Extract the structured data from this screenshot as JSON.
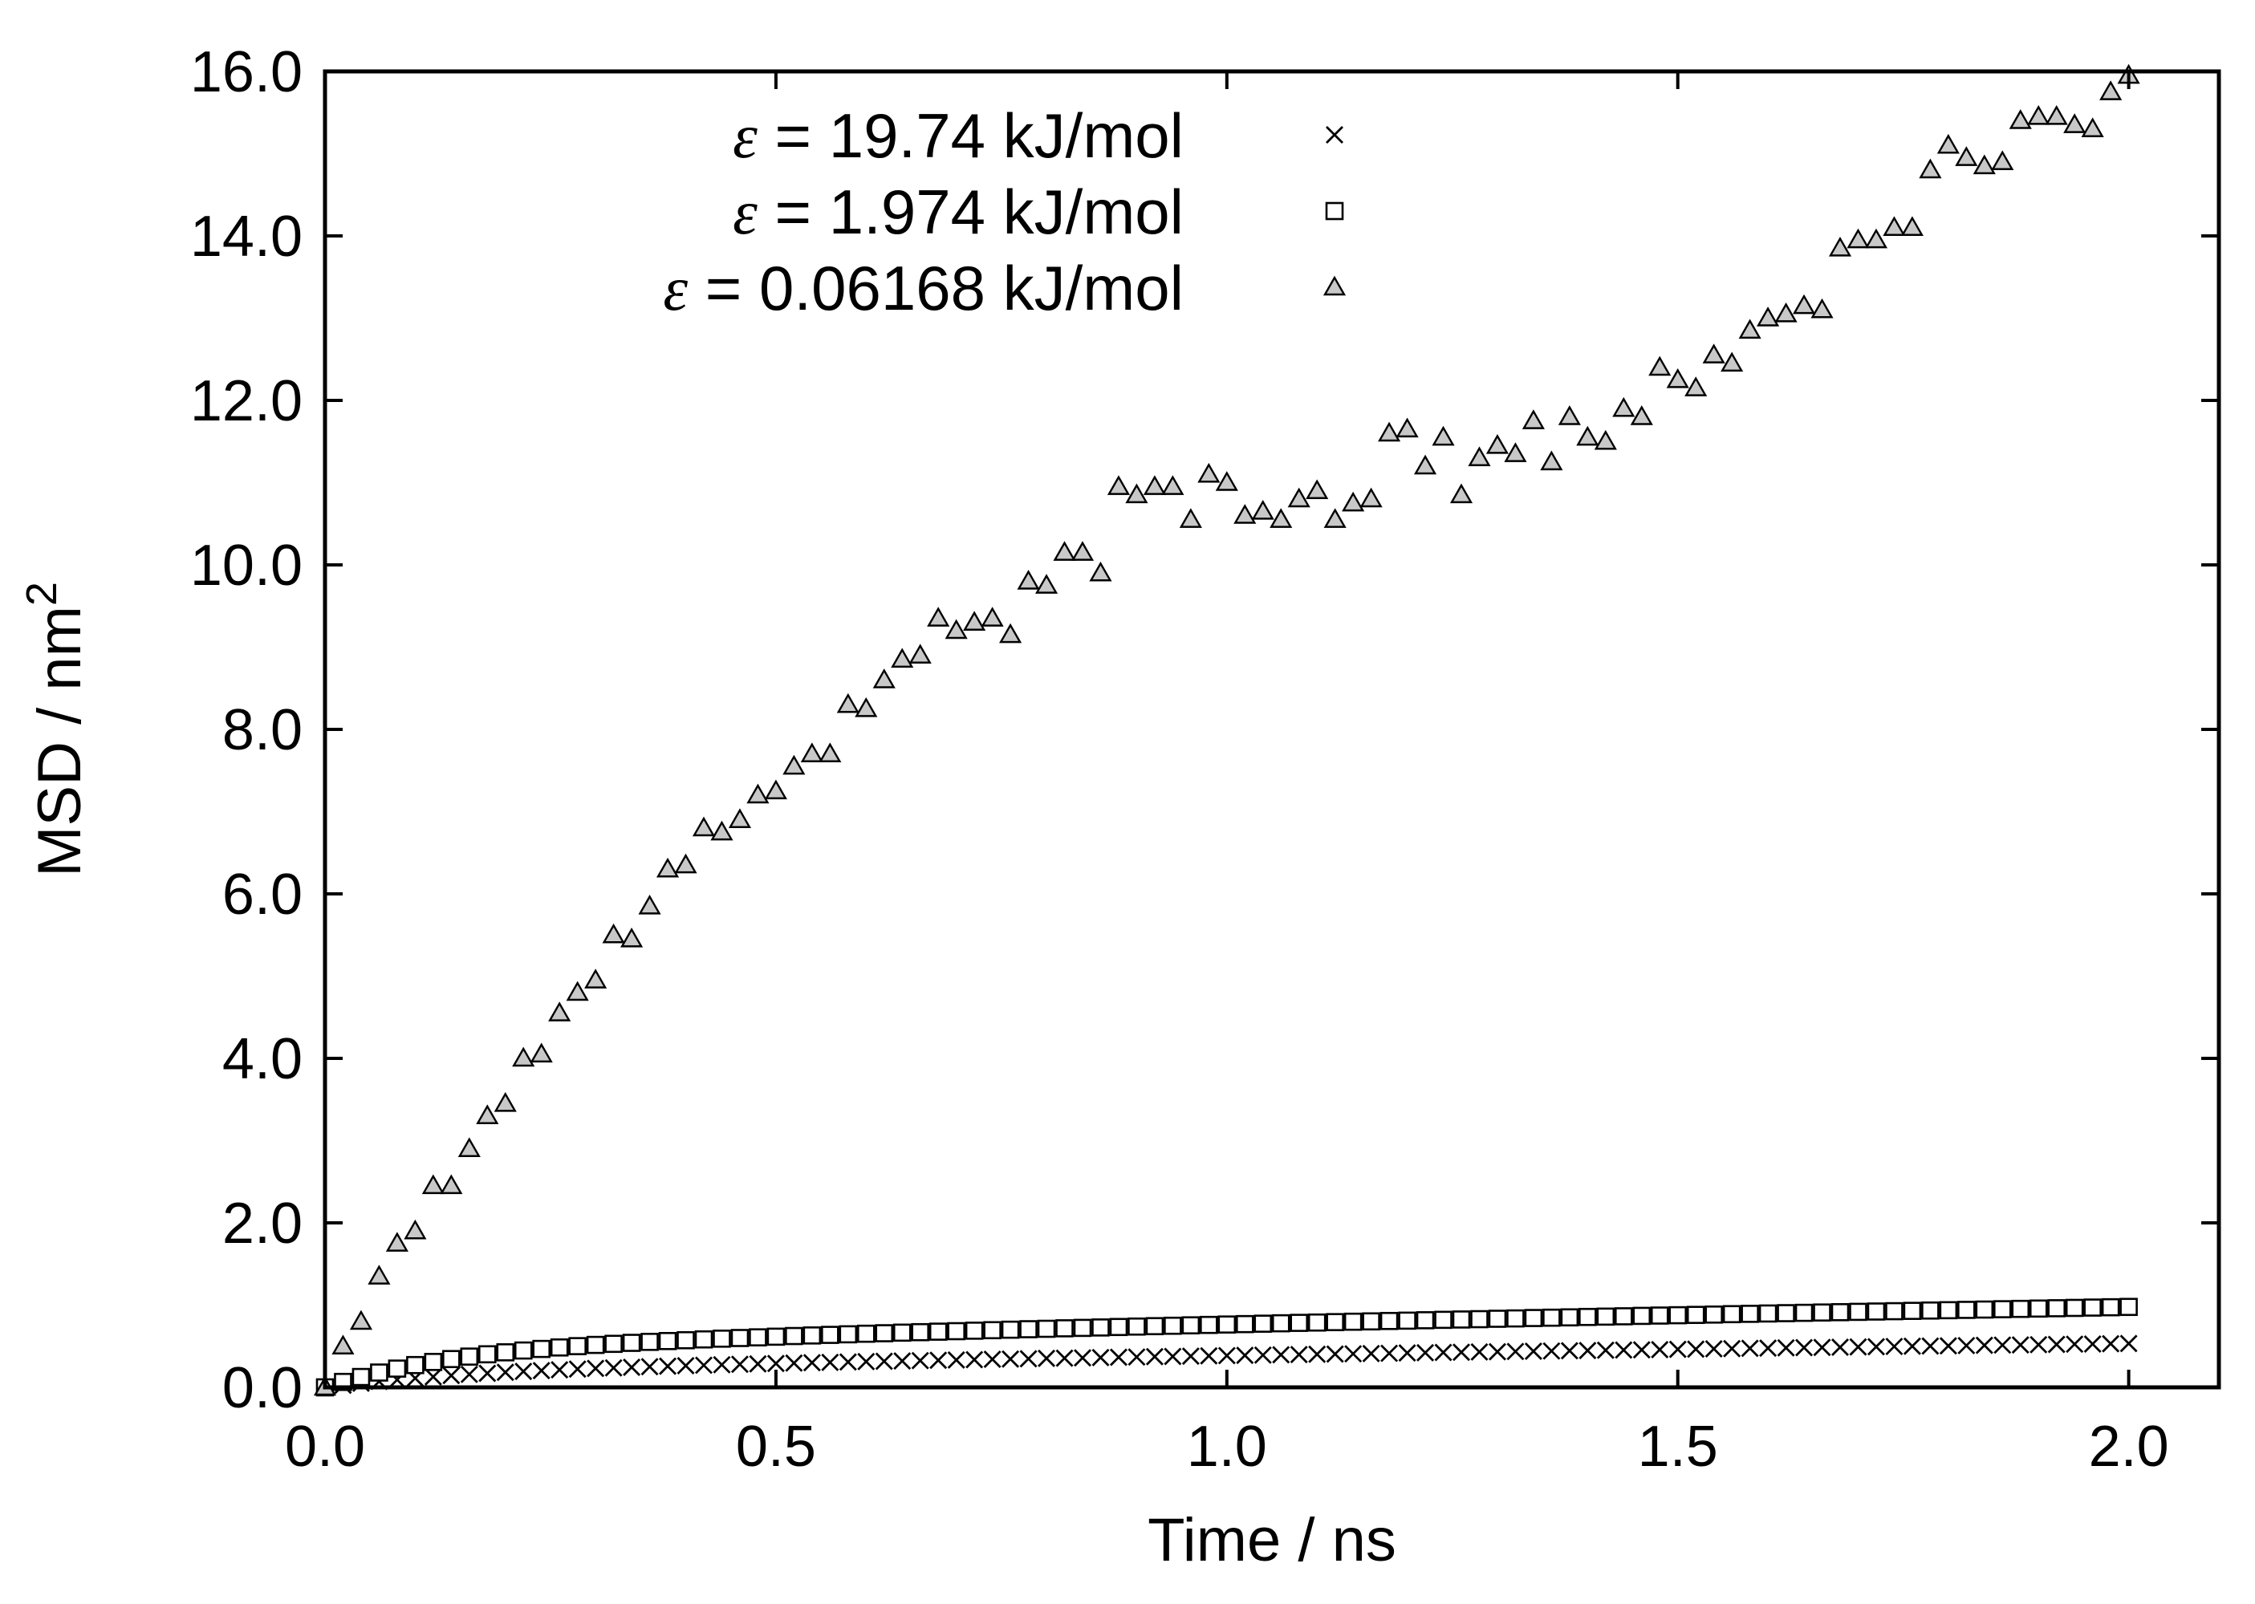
{
  "chart_data": {
    "type": "scatter",
    "title": "",
    "xlabel": "Time / ns",
    "ylabel_base": "MSD / nm",
    "ylabel_sup": "2",
    "xlim": [
      0.0,
      2.1
    ],
    "ylim": [
      0.0,
      16.0
    ],
    "x_ticks": [
      0.0,
      0.5,
      1.0,
      1.5,
      2.0
    ],
    "x_tick_labels": [
      "0.0",
      "0.5",
      "1.0",
      "1.5",
      "2.0"
    ],
    "y_ticks": [
      0,
      2,
      4,
      6,
      8,
      10,
      12,
      14,
      16
    ],
    "y_tick_labels": [
      "0.0",
      "2.0",
      "4.0",
      "6.0",
      "8.0",
      "10.0",
      "12.0",
      "14.0",
      "16.0"
    ],
    "grid": false,
    "legend_position": "top-left",
    "series": [
      {
        "name": "ε = 19.74 kJ/mol",
        "symbol": "ε",
        "label_rest": " = 19.74 kJ/mol",
        "marker": "cross",
        "x_start": 0.0,
        "x_step": 0.02,
        "values": [
          0.0,
          0.026,
          0.05,
          0.072,
          0.092,
          0.111,
          0.128,
          0.144,
          0.158,
          0.171,
          0.183,
          0.194,
          0.204,
          0.213,
          0.222,
          0.23,
          0.237,
          0.244,
          0.251,
          0.257,
          0.263,
          0.269,
          0.275,
          0.28,
          0.285,
          0.29,
          0.295,
          0.3,
          0.304,
          0.309,
          0.313,
          0.317,
          0.321,
          0.325,
          0.329,
          0.333,
          0.337,
          0.341,
          0.344,
          0.348,
          0.352,
          0.355,
          0.359,
          0.362,
          0.366,
          0.369,
          0.373,
          0.376,
          0.379,
          0.383,
          0.386,
          0.389,
          0.392,
          0.396,
          0.399,
          0.402,
          0.405,
          0.408,
          0.411,
          0.414,
          0.418,
          0.421,
          0.424,
          0.427,
          0.43,
          0.433,
          0.436,
          0.439,
          0.442,
          0.445,
          0.448,
          0.451,
          0.454,
          0.456,
          0.459,
          0.462,
          0.465,
          0.468,
          0.471,
          0.474,
          0.477,
          0.48,
          0.483,
          0.485,
          0.488,
          0.491,
          0.494,
          0.497,
          0.5,
          0.502,
          0.505,
          0.508,
          0.511,
          0.514,
          0.516,
          0.519,
          0.522,
          0.525,
          0.527,
          0.53,
          0.533
        ]
      },
      {
        "name": "ε = 1.974 kJ/mol",
        "symbol": "ε",
        "label_rest": " = 1.974 kJ/mol",
        "marker": "square",
        "x_start": 0.0,
        "x_step": 0.02,
        "values": [
          0.0,
          0.066,
          0.126,
          0.18,
          0.228,
          0.271,
          0.309,
          0.344,
          0.374,
          0.402,
          0.426,
          0.448,
          0.467,
          0.485,
          0.501,
          0.516,
          0.529,
          0.541,
          0.553,
          0.563,
          0.573,
          0.583,
          0.592,
          0.6,
          0.608,
          0.616,
          0.624,
          0.631,
          0.638,
          0.645,
          0.652,
          0.658,
          0.665,
          0.671,
          0.677,
          0.683,
          0.689,
          0.695,
          0.701,
          0.707,
          0.712,
          0.718,
          0.723,
          0.728,
          0.734,
          0.739,
          0.744,
          0.749,
          0.754,
          0.759,
          0.764,
          0.769,
          0.774,
          0.779,
          0.784,
          0.788,
          0.793,
          0.798,
          0.802,
          0.807,
          0.811,
          0.816,
          0.821,
          0.825,
          0.829,
          0.834,
          0.838,
          0.843,
          0.847,
          0.851,
          0.856,
          0.86,
          0.864,
          0.869,
          0.873,
          0.877,
          0.881,
          0.885,
          0.89,
          0.894,
          0.898,
          0.902,
          0.906,
          0.91,
          0.914,
          0.918,
          0.922,
          0.926,
          0.93,
          0.934,
          0.938,
          0.942,
          0.946,
          0.95,
          0.954,
          0.958,
          0.962,
          0.966,
          0.97,
          0.974,
          0.978
        ]
      },
      {
        "name": "ε = 0.06168 kJ/mol",
        "symbol": "ε",
        "label_rest": " = 0.06168 kJ/mol",
        "marker": "triangle",
        "x_start": 0.0,
        "x_step": 0.02,
        "values": [
          0.0,
          0.5,
          0.8,
          1.35,
          1.75,
          1.9,
          2.45,
          2.45,
          2.9,
          3.3,
          3.45,
          4.0,
          4.05,
          4.55,
          4.8,
          4.95,
          5.5,
          5.45,
          5.85,
          6.3,
          6.35,
          6.8,
          6.75,
          6.9,
          7.2,
          7.25,
          7.55,
          7.7,
          7.7,
          8.3,
          8.25,
          8.6,
          8.85,
          8.9,
          9.35,
          9.2,
          9.3,
          9.35,
          9.15,
          9.8,
          9.75,
          10.15,
          10.15,
          9.9,
          10.95,
          10.85,
          10.95,
          10.95,
          10.55,
          11.1,
          11.0,
          10.6,
          10.65,
          10.55,
          10.8,
          10.9,
          10.55,
          10.75,
          10.8,
          11.6,
          11.65,
          11.2,
          11.55,
          10.85,
          11.3,
          11.45,
          11.35,
          11.75,
          11.25,
          11.8,
          11.55,
          11.5,
          11.9,
          11.8,
          12.4,
          12.25,
          12.15,
          12.55,
          12.45,
          12.85,
          13.0,
          13.05,
          13.15,
          13.1,
          13.85,
          13.95,
          13.95,
          14.1,
          14.1,
          14.8,
          15.1,
          14.95,
          14.85,
          14.9,
          15.4,
          15.45,
          15.45,
          15.35,
          15.3,
          15.75,
          15.95
        ]
      }
    ]
  }
}
